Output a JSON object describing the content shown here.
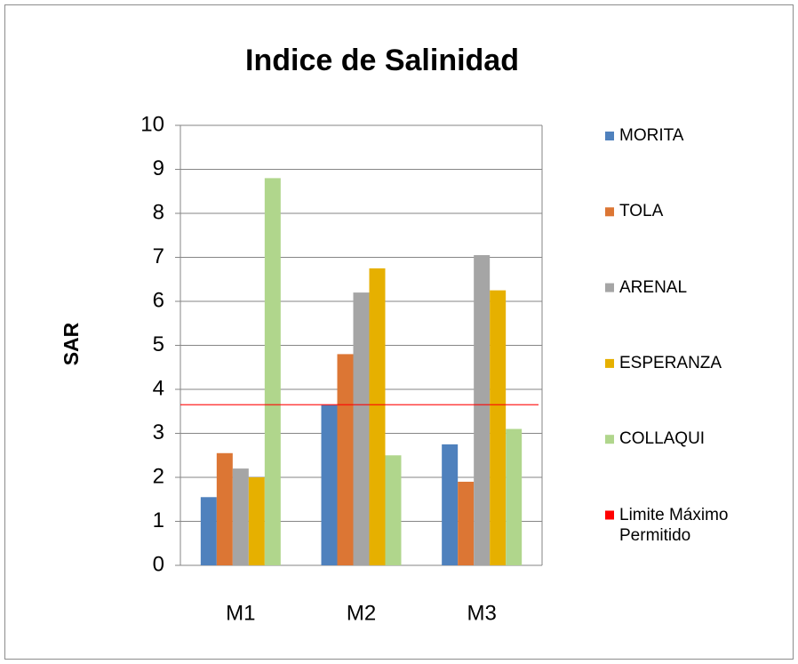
{
  "chart_data": {
    "type": "bar",
    "title": "Indice de Salinidad",
    "y_label": "SAR",
    "categories": [
      "M1",
      "M2",
      "M3"
    ],
    "series": [
      {
        "name": "MORITA",
        "color": "#4f81bd",
        "values": [
          1.55,
          3.65,
          2.75
        ]
      },
      {
        "name": "TOLA",
        "color": "#dc7634",
        "values": [
          2.55,
          4.8,
          1.9
        ]
      },
      {
        "name": "ARENAL",
        "color": "#a5a5a5",
        "values": [
          2.2,
          6.2,
          7.05
        ]
      },
      {
        "name": "ESPERANZA",
        "color": "#e6b000",
        "values": [
          2.0,
          6.75,
          6.25
        ]
      },
      {
        "name": "COLLAQUI",
        "color": "#b0d68c",
        "values": [
          8.8,
          2.5,
          3.1
        ]
      }
    ],
    "reference_lines": [
      {
        "name": "Limite Máximo Permitido",
        "value": 3.65,
        "color": "#ff0000"
      }
    ],
    "ylim": [
      0,
      10
    ],
    "yticks": [
      0,
      1,
      2,
      3,
      4,
      5,
      6,
      7,
      8,
      9,
      10
    ],
    "grid": true,
    "legend": "right"
  }
}
